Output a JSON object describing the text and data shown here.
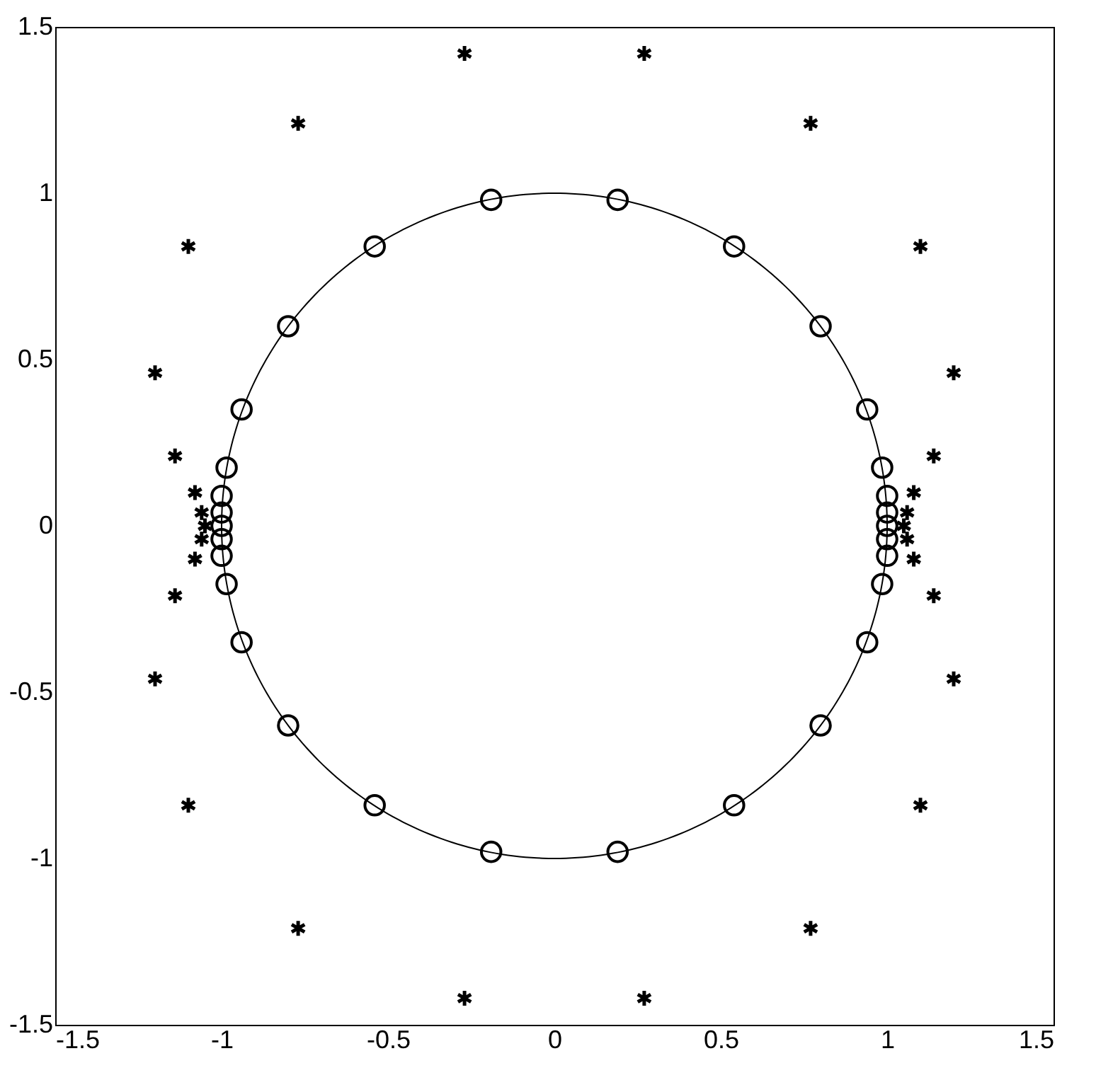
{
  "chart_data": {
    "type": "scatter",
    "xlim": [
      -1.5,
      1.5
    ],
    "ylim": [
      -1.5,
      1.5
    ],
    "xticks": [
      -1.5,
      -1,
      -0.5,
      0,
      0.5,
      1,
      1.5
    ],
    "yticks": [
      -1.5,
      -1,
      -0.5,
      0,
      0.5,
      1,
      1.5
    ],
    "grid": false,
    "series": [
      {
        "color": "#000000",
        "marker": "circle",
        "x": [
          0.19,
          -0.19,
          0.54,
          -0.54,
          0.8,
          -0.8,
          0.94,
          -0.94,
          0.985,
          -0.985,
          1,
          -1,
          1,
          -1,
          1,
          -1,
          1,
          -1,
          1,
          -1,
          0.985,
          -0.985,
          0.94,
          -0.94,
          0.8,
          -0.8,
          0.54,
          -0.54,
          0.19,
          -0.19
        ],
        "values": [
          0.98,
          0.98,
          0.84,
          0.84,
          0.6,
          0.6,
          0.35,
          0.35,
          0.175,
          0.175,
          0.09,
          0.09,
          0.04,
          0.04,
          0,
          0,
          -0.04,
          -0.04,
          -0.09,
          -0.09,
          -0.175,
          -0.175,
          -0.35,
          -0.35,
          -0.6,
          -0.6,
          -0.84,
          -0.84,
          -0.98,
          -0.98
        ]
      },
      {
        "color": "#000000",
        "marker": "cross",
        "x": [
          0.27,
          -0.27,
          0.77,
          -0.77,
          1.1,
          -1.1,
          1.2,
          -1.2,
          1.14,
          -1.14,
          1.08,
          -1.08,
          1.06,
          -1.06,
          1.05,
          -1.05,
          1.06,
          -1.06,
          1.08,
          -1.08,
          1.14,
          -1.14,
          1.2,
          -1.2,
          1.1,
          -1.1,
          0.77,
          -0.77,
          0.27,
          -0.27
        ],
        "values": [
          1.42,
          1.42,
          1.21,
          1.21,
          0.84,
          0.84,
          0.46,
          0.46,
          0.21,
          0.21,
          0.1,
          0.1,
          0.04,
          0.04,
          0,
          0,
          -0.04,
          -0.04,
          -0.1,
          -0.1,
          -0.21,
          -0.21,
          -0.46,
          -0.46,
          -0.84,
          -0.84,
          -1.21,
          -1.21,
          -1.42,
          -1.42
        ]
      }
    ]
  }
}
